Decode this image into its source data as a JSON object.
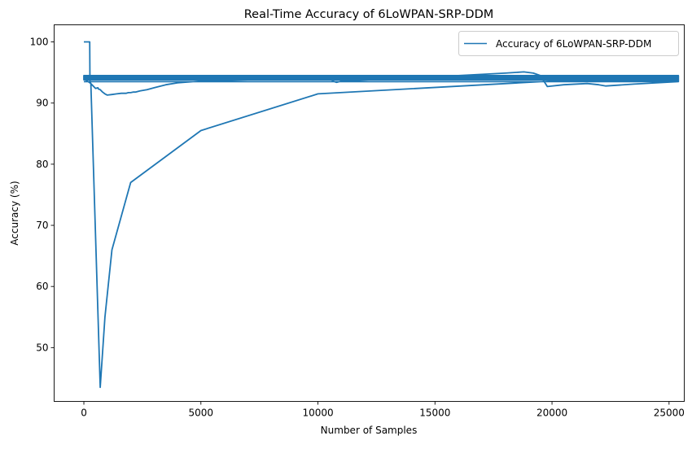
{
  "chart_data": {
    "type": "line",
    "title": "Real-Time Accuracy of 6LoWPAN-SRP-DDM",
    "xlabel": "Number of Samples",
    "ylabel": "Accuracy (%)",
    "xlim": [
      -1270,
      25650
    ],
    "ylim": [
      41.2,
      102.8
    ],
    "xticks": [
      0,
      5000,
      10000,
      15000,
      20000,
      25000
    ],
    "xtick_labels": [
      "0",
      "5000",
      "10000",
      "15000",
      "20000",
      "25000"
    ],
    "yticks": [
      50,
      60,
      70,
      80,
      90,
      100
    ],
    "ytick_labels": [
      "50",
      "60",
      "70",
      "80",
      "90",
      "100"
    ],
    "grid": false,
    "legend_position": "top-right",
    "series": [
      {
        "name": "Accuracy of 6LoWPAN-SRP-DDM",
        "color": "#1f77b4",
        "x": [
          0,
          250,
          260,
          300,
          500,
          600,
          620,
          700,
          800,
          900,
          1000,
          1200,
          1400,
          1600,
          1800,
          1900,
          2000,
          2100,
          2200,
          2400,
          2700,
          3000,
          3500,
          4000,
          5000,
          6000,
          7000,
          8000,
          9000,
          10000,
          10500,
          10700,
          10800,
          11000,
          15000,
          18000,
          18800,
          19200,
          19500,
          19800,
          20500,
          21500,
          22000,
          22300,
          23500,
          25400,
          25400,
          0,
          0,
          25400,
          25400,
          0,
          0,
          25400,
          25400,
          0,
          0,
          300,
          700,
          900,
          1200,
          2000,
          5000,
          10000,
          20000,
          25400,
          25400,
          0
        ],
        "y": [
          100,
          100,
          93.5,
          93.2,
          92.4,
          92.5,
          92.3,
          92.2,
          91.8,
          91.5,
          91.3,
          91.4,
          91.5,
          91.6,
          91.6,
          91.7,
          91.7,
          91.8,
          91.8,
          92,
          92.2,
          92.5,
          93,
          93.3,
          93.6,
          93.7,
          93.8,
          93.9,
          93.9,
          93.9,
          94,
          93.5,
          93.4,
          93.6,
          94.3,
          94.9,
          95.1,
          94.9,
          94.5,
          92.7,
          93,
          93.2,
          93,
          92.8,
          93.1,
          93.5,
          94.5,
          94.5,
          94.2,
          94.2,
          94,
          94,
          93.8,
          93.8,
          94.3,
          94.3,
          94,
          93.2,
          43.5,
          55,
          66,
          77,
          85.5,
          91.5,
          93.6,
          93.7,
          93.5,
          93.5
        ]
      }
    ]
  }
}
